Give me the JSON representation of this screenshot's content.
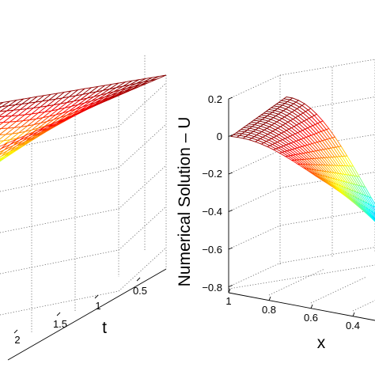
{
  "chart_data": [
    {
      "type": "surface",
      "description_of_surface": "wireframe mesh colored by height (jet colormap)",
      "colormap": "jet",
      "axes": {
        "t": {
          "label": "t",
          "ticks": [
            "0.5",
            "1",
            "1.5",
            "2"
          ]
        }
      },
      "grid": true
    },
    {
      "type": "surface",
      "colormap": "jet",
      "axes": {
        "x": {
          "label": "x",
          "ticks": [
            "1",
            "0.8",
            "0.6",
            "0.4"
          ]
        },
        "z": {
          "label": "Numerical Solution – U",
          "ticks": [
            "0.2",
            "0",
            "−0.2",
            "−0.4",
            "−0.6",
            "−0.8"
          ],
          "range": [
            -0.8,
            0.2
          ]
        }
      },
      "grid": true,
      "surface_formula": "U(x,t) ≈ −t·(1−cos(2πx))/2 · 0.45"
    }
  ]
}
